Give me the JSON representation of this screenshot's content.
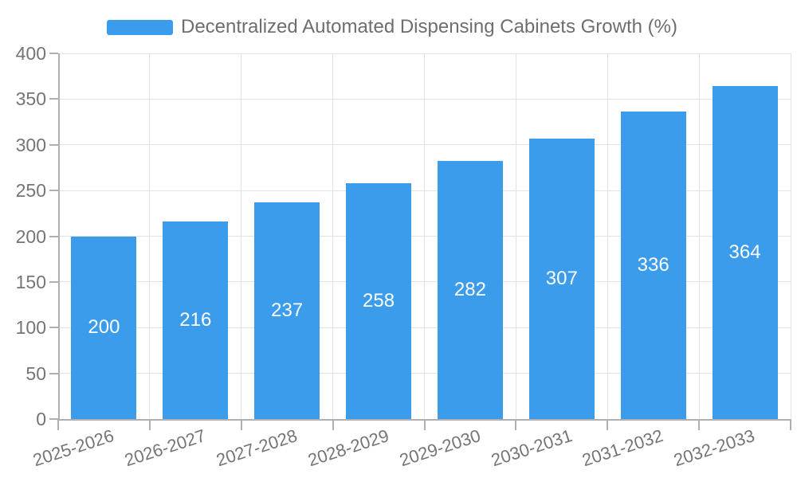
{
  "chart_data": {
    "type": "bar",
    "title": "Decentralized Automated Dispensing Cabinets Growth (%)",
    "series_name": "Decentralized Automated Dispensing Cabinets Growth (%)",
    "categories": [
      "2025-2026",
      "2026-2027",
      "2027-2028",
      "2028-2029",
      "2029-2030",
      "2030-2031",
      "2031-2032",
      "2032-2033"
    ],
    "values": [
      200,
      216,
      237,
      258,
      282,
      307,
      336,
      364
    ],
    "xlabel": "",
    "ylabel": "",
    "ylim": [
      0,
      400
    ],
    "ytick_step": 50,
    "grid": true,
    "legend_position": "top",
    "bar_color": "#3b9cec",
    "value_label_color": "#ffffff",
    "axis_label_color": "#757575",
    "title_color": "#6e6e6e",
    "axis_line_color": "#b0b0b0",
    "gridline_color": "#e3e3e3"
  }
}
